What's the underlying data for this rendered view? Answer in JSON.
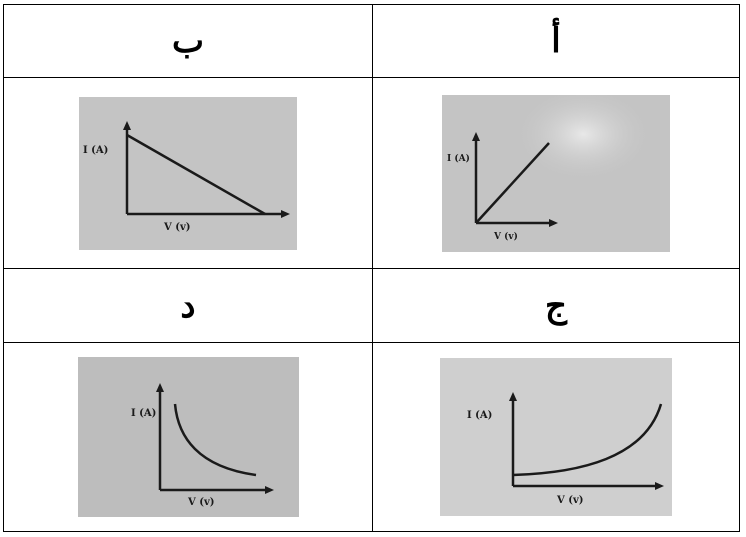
{
  "table": {
    "headers": {
      "left_top": "ب",
      "right_top": "أ",
      "left_bottom": "د",
      "right_bottom": "ج"
    }
  },
  "graphs": {
    "a": {
      "ylabel": "I (A)",
      "xlabel": "V (v)",
      "shape": "linear-increasing-from-origin"
    },
    "b": {
      "ylabel": "I (A)",
      "xlabel": "V (v)",
      "shape": "linear-decreasing"
    },
    "j": {
      "ylabel": "I (A)",
      "xlabel": "V (v)",
      "shape": "exponential-increasing"
    },
    "d": {
      "ylabel": "I (A)",
      "xlabel": "V (v)",
      "shape": "inverse-decreasing"
    }
  },
  "colors": {
    "paper": "#c9c9c9",
    "ink": "#1a1a1a",
    "border": "#000000"
  }
}
